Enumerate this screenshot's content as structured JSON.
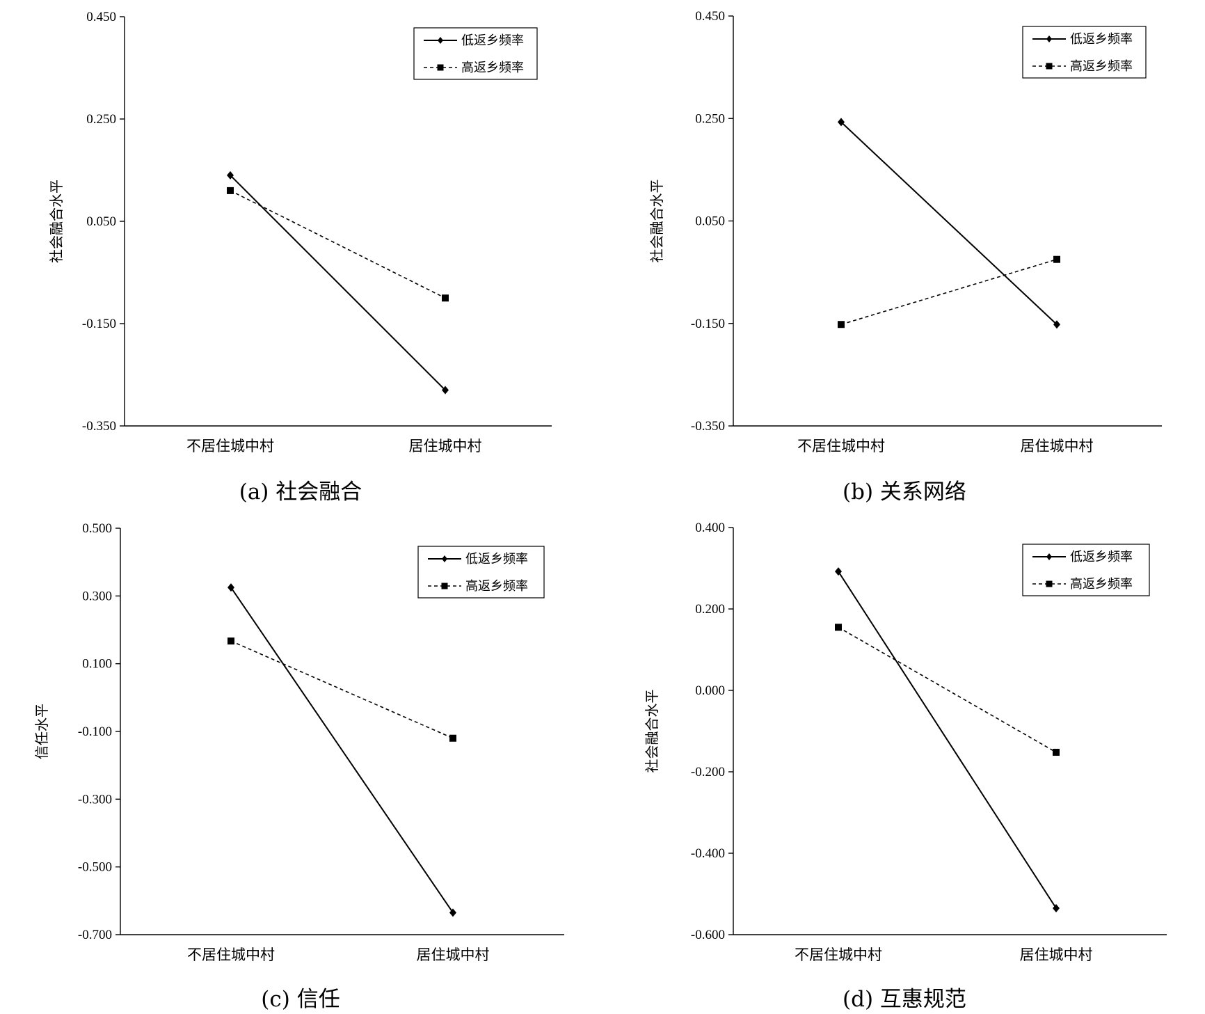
{
  "chart_data": [
    {
      "type": "line",
      "caption": "(a) 社会融合",
      "ylabel": "社会融合水平",
      "categories": [
        "不居住城中村",
        "居住城中村"
      ],
      "ylim": [
        -0.35,
        0.45
      ],
      "yticks": [
        "0.450",
        "0.250",
        "0.050",
        "-0.150",
        "-0.350"
      ],
      "legend_position": "top-right",
      "series": [
        {
          "name": "低返乡频率",
          "marker": "diamond",
          "line": "solid",
          "values": [
            0.14,
            -0.28
          ]
        },
        {
          "name": "高返乡频率",
          "marker": "square",
          "line": "dashed",
          "values": [
            0.11,
            -0.1
          ]
        }
      ]
    },
    {
      "type": "line",
      "caption": "(b) 关系网络",
      "ylabel": "社会融合水平",
      "categories": [
        "不居住城中村",
        "居住城中村"
      ],
      "ylim": [
        -0.35,
        0.45
      ],
      "yticks": [
        "0.450",
        "0.250",
        "0.050",
        "-0.150",
        "-0.350"
      ],
      "legend_position": "top-right",
      "series": [
        {
          "name": "低返乡频率",
          "marker": "diamond",
          "line": "solid",
          "values": [
            0.243,
            -0.152
          ]
        },
        {
          "name": "高返乡频率",
          "marker": "square",
          "line": "dashed",
          "values": [
            -0.152,
            -0.025
          ]
        }
      ]
    },
    {
      "type": "line",
      "caption": "(c) 信任",
      "ylabel": "信任水平",
      "categories": [
        "不居住城中村",
        "居住城中村"
      ],
      "ylim": [
        -0.7,
        0.5
      ],
      "yticks": [
        "0.500",
        "0.300",
        "0.100",
        "-0.100",
        "-0.300",
        "-0.500",
        "-0.700"
      ],
      "legend_position": "top-right",
      "series": [
        {
          "name": "低返乡频率",
          "marker": "diamond",
          "line": "solid",
          "values": [
            0.325,
            -0.635
          ]
        },
        {
          "name": "高返乡频率",
          "marker": "square",
          "line": "dashed",
          "values": [
            0.167,
            -0.12
          ]
        }
      ]
    },
    {
      "type": "line",
      "caption": "(d) 互惠规范",
      "ylabel": "社会融合水平",
      "categories": [
        "不居住城中村",
        "居住城中村"
      ],
      "ylim": [
        -0.6,
        0.4
      ],
      "yticks": [
        "0.400",
        "0.200",
        "0.000",
        "-0.200",
        "-0.400",
        "-0.600"
      ],
      "legend_position": "top-right",
      "series": [
        {
          "name": "低返乡频率",
          "marker": "diamond",
          "line": "solid",
          "values": [
            0.292,
            -0.535
          ]
        },
        {
          "name": "高返乡频率",
          "marker": "square",
          "line": "dashed",
          "values": [
            0.155,
            -0.152
          ]
        }
      ]
    }
  ]
}
